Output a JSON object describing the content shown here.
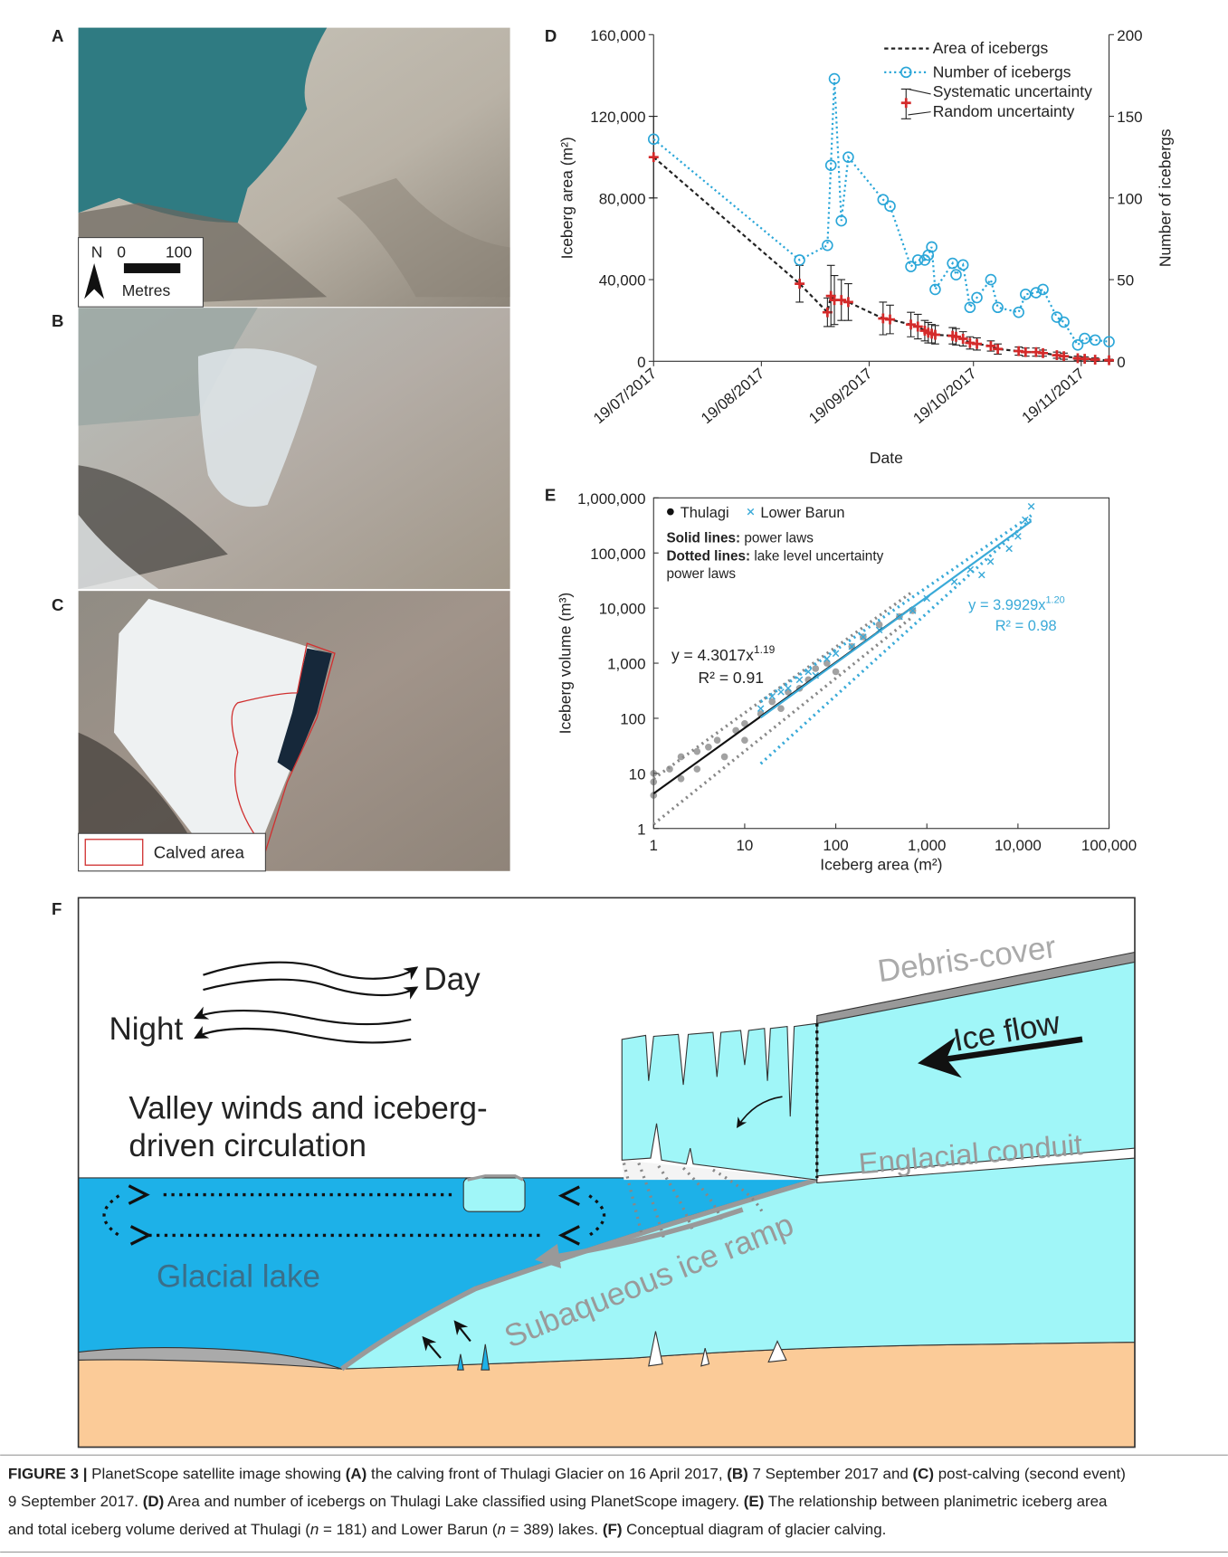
{
  "figure": {
    "panel_letters": [
      "A",
      "B",
      "C",
      "D",
      "E",
      "F"
    ],
    "panel_a": {
      "north": "N",
      "scale_start": 0,
      "scale_end": 100,
      "scale_unit": "Metres"
    },
    "panel_c": {
      "legend": "Calved area"
    },
    "panel_f": {
      "day": "Day",
      "night": "Night",
      "winds_lines": [
        "Valley winds and iceberg-",
        "driven circulation"
      ],
      "lake": "Glacial lake",
      "ramp": "Subaqueous ice ramp",
      "conduit": "Englacial conduit",
      "debris": "Debris-cover",
      "flow": "Ice flow"
    },
    "caption": [
      [
        "FIGURE 3 |",
        " PlanetScope satellite image showing ",
        "(A)",
        " the calving front of Thulagi Glacier on 16 April 2017, ",
        "(B)",
        " 7 September 2017 and ",
        "(C)",
        " post-calving (second event)"
      ],
      [
        "9 September 2017. ",
        "(D)",
        " Area and number of icebergs on Thulagi Lake classified using PlanetScope imagery. ",
        "(E)",
        " The relationship between planimetric iceberg area"
      ],
      [
        "and total iceberg volume derived at Thulagi (",
        "n",
        " = 181) and Lower Barun (",
        "n",
        " = 389) lakes. ",
        "(F)",
        " Conceptual diagram of glacier calving."
      ]
    ]
  },
  "chart_data": [
    {
      "type": "line",
      "xlabel": "Date",
      "ylabel": "Iceberg area (m²)",
      "y2label": "Number of icebergs",
      "x": [
        "19/07/2017",
        "30/08/2017",
        "07/09/2017",
        "08/09/2017",
        "09/09/2017",
        "11/09/2017",
        "13/09/2017",
        "23/09/2017",
        "25/09/2017",
        "01/10/2017",
        "03/10/2017",
        "05/10/2017",
        "06/10/2017",
        "07/10/2017",
        "08/10/2017",
        "13/10/2017",
        "14/10/2017",
        "16/10/2017",
        "18/10/2017",
        "20/10/2017",
        "24/10/2017",
        "26/10/2017",
        "01/11/2017",
        "03/11/2017",
        "06/11/2017",
        "08/11/2017",
        "12/11/2017",
        "14/11/2017",
        "18/11/2017",
        "20/11/2017",
        "23/11/2017",
        "27/11/2017"
      ],
      "xlim": [
        "19/07/2017",
        "27/11/2017"
      ],
      "xticks": [
        "19/07/2017",
        "19/08/2017",
        "19/09/2017",
        "19/10/2017",
        "19/11/2017"
      ],
      "ylim": [
        0,
        160000
      ],
      "yticks": [
        0,
        {
          "value": 40000,
          "label": "40,000"
        },
        {
          "value": 80000,
          "label": "80,000"
        },
        {
          "value": 120000,
          "label": "120,000"
        },
        {
          "value": 160000,
          "label": "160,000"
        }
      ],
      "y2lim": [
        0,
        200
      ],
      "y2ticks": [
        0,
        50,
        100,
        150,
        200
      ],
      "uncertainty_labels": [
        "Systematic uncertainty",
        "Random uncertainty"
      ],
      "series": [
        {
          "name": "Area of icebergs",
          "color": "#222222",
          "marker": "plus",
          "marker_color": "#d42a2a",
          "dash": "4 3",
          "axis": "y",
          "values": [
            100000,
            38000,
            24000,
            32000,
            30000,
            30000,
            29000,
            21000,
            20500,
            18000,
            17000,
            15000,
            14000,
            13500,
            13000,
            12500,
            12000,
            11000,
            9000,
            8500,
            7500,
            6000,
            5000,
            4500,
            4500,
            4000,
            3000,
            2500,
            1500,
            1200,
            800,
            500
          ],
          "errors": [
            20000,
            9000,
            7000,
            15000,
            12000,
            10000,
            9000,
            8000,
            7000,
            6000,
            6000,
            5000,
            5000,
            4500,
            4500,
            4000,
            4000,
            3500,
            3000,
            3000,
            2500,
            2500,
            2000,
            2000,
            2000,
            1500,
            1500,
            1500,
            1000,
            1000,
            800,
            500
          ]
        },
        {
          "name": "Number of icebergs",
          "color": "#2aa6d8",
          "marker": "circle",
          "marker_color": "#2aa6d8",
          "dash": "2 3",
          "axis": "y2",
          "values": [
            136,
            62,
            71,
            120,
            173,
            86,
            125,
            99,
            95,
            58,
            62,
            62,
            65,
            70,
            44,
            60,
            53,
            59,
            33,
            39,
            50,
            33,
            30,
            41,
            42,
            44,
            27,
            24,
            10,
            14,
            13,
            12
          ]
        }
      ]
    },
    {
      "type": "scatter",
      "xlabel": "Iceberg area (m²)",
      "ylabel": "Iceberg volume (m³)",
      "log_x": true,
      "log_y": true,
      "xlim": [
        1,
        100000
      ],
      "xticks": [
        1,
        10,
        100,
        {
          "value": 1000,
          "label": "1,000"
        },
        {
          "value": 10000,
          "label": "10,000"
        },
        {
          "value": 100000,
          "label": "100,000"
        }
      ],
      "ylim": [
        1,
        1000000
      ],
      "yticks": [
        1,
        10,
        100,
        {
          "value": 1000,
          "label": "1,000"
        },
        {
          "value": 10000,
          "label": "10,000"
        },
        {
          "value": 100000,
          "label": "100,000"
        },
        {
          "value": 1000000,
          "label": "1,000,000"
        }
      ],
      "notes": [
        [
          "Solid lines:",
          " power laws"
        ],
        [
          "Dotted lines:",
          " lake level uncertainty"
        ],
        [
          "power laws"
        ]
      ],
      "series": [
        {
          "name": "Thulagi",
          "color": "#555555",
          "marker": "dot",
          "x": [
            1,
            1,
            1,
            1.5,
            2,
            2,
            3,
            3,
            4,
            5,
            6,
            8,
            10,
            10,
            15,
            20,
            25,
            30,
            40,
            50,
            60,
            80,
            100,
            150,
            200,
            300,
            500,
            700
          ],
          "y": [
            7,
            4,
            10,
            12,
            20,
            8,
            25,
            12,
            30,
            40,
            20,
            60,
            80,
            40,
            120,
            200,
            150,
            300,
            350,
            500,
            800,
            1000,
            700,
            2000,
            3000,
            5000,
            7000,
            9000
          ],
          "fit": {
            "text": "y = 4.3017x",
            "exponent": "1.19",
            "r2": "R² = 0.91"
          }
        },
        {
          "name": "Lower Barun",
          "color": "#3aaad8",
          "marker": "x",
          "x": [
            15,
            20,
            25,
            30,
            40,
            50,
            60,
            80,
            100,
            150,
            200,
            300,
            500,
            700,
            1000,
            2000,
            3000,
            4000,
            5000,
            8000,
            10000,
            12000,
            14000
          ],
          "y": [
            150,
            250,
            300,
            350,
            500,
            700,
            600,
            1200,
            1500,
            2000,
            3000,
            4000,
            7000,
            9000,
            15000,
            30000,
            50000,
            40000,
            70000,
            120000,
            200000,
            400000,
            700000
          ],
          "fit": {
            "text": "y = 3.9929x",
            "exponent": "1.20",
            "r2": "R² = 0.98"
          }
        }
      ],
      "fit_lines": [
        {
          "color": "#111111",
          "dash": false,
          "x": [
            1,
            700
          ],
          "y": [
            4.3,
            10450
          ]
        },
        {
          "color": "#3aaad8",
          "dash": false,
          "x": [
            15,
            14000
          ],
          "y": [
            103,
            377000
          ]
        },
        {
          "color": "#888888",
          "dash": true,
          "x": [
            1,
            700
          ],
          "y": [
            8,
            20000
          ]
        },
        {
          "color": "#888888",
          "dash": true,
          "x": [
            1,
            700
          ],
          "y": [
            1.2,
            7000
          ]
        },
        {
          "color": "#3aaad8",
          "dash": true,
          "x": [
            15,
            14000
          ],
          "y": [
            200,
            480000
          ]
        },
        {
          "color": "#3aaad8",
          "dash": true,
          "x": [
            15,
            14000
          ],
          "y": [
            15,
            420000
          ]
        }
      ]
    }
  ]
}
